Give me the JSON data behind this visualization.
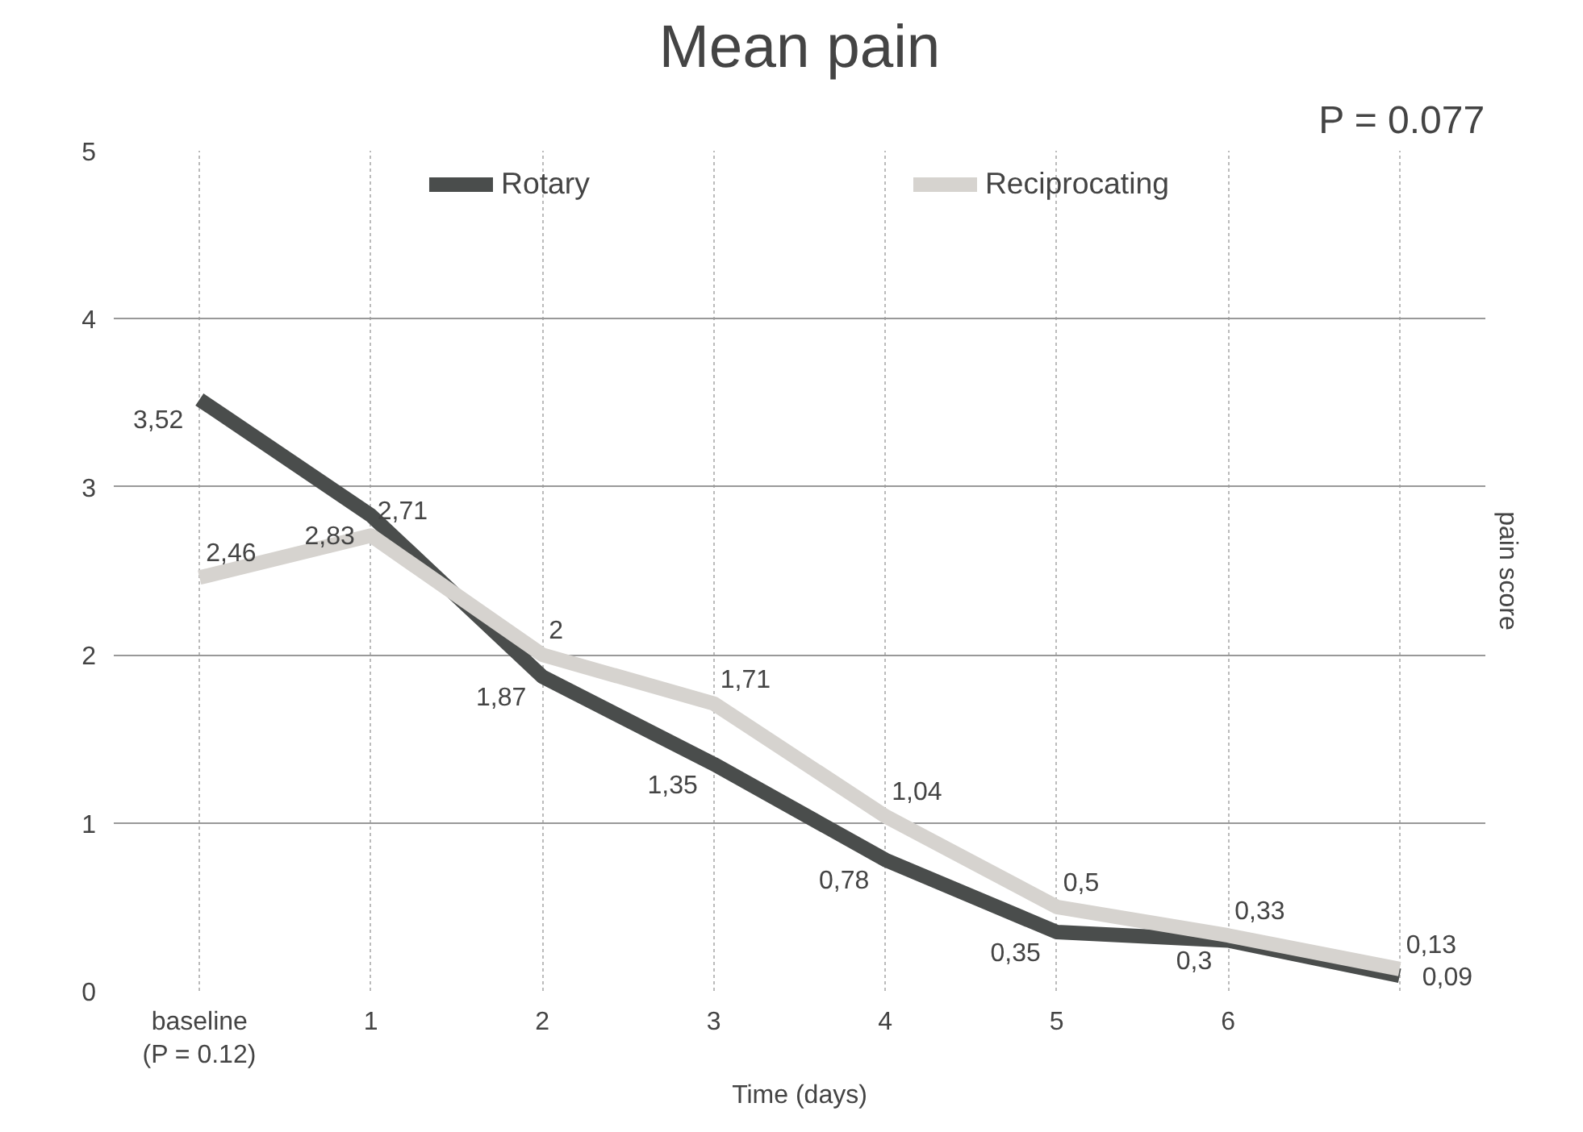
{
  "chart_data": {
    "type": "line",
    "title": "Mean pain",
    "ylabel": "pain score",
    "xlabel": "Time (days)",
    "categories": [
      "baseline\n(P = 0.12)",
      "1",
      "2",
      "3",
      "4",
      "5",
      "6",
      null
    ],
    "series": [
      {
        "name": "Rotary",
        "color": "#4a4d4c",
        "values": [
          3.52,
          2.83,
          1.87,
          1.35,
          0.78,
          0.35,
          0.3,
          0.09
        ],
        "value_labels": [
          "3,52",
          "2,83",
          "1,87",
          "1,35",
          "0,78",
          "0,35",
          "0,3",
          "0,09"
        ]
      },
      {
        "name": "Reciprocating",
        "color": "#d6d3cf",
        "values": [
          2.46,
          2.71,
          2,
          1.71,
          1.04,
          0.5,
          0.33,
          0.13
        ],
        "value_labels": [
          "2,46",
          "2,71",
          "2",
          "1,71",
          "1,04",
          "0,5",
          "0,33",
          "0,13"
        ]
      }
    ],
    "ylim": [
      0,
      5
    ],
    "yticks": [
      0,
      1,
      2,
      3,
      4,
      5
    ],
    "grid": true,
    "legend": "top",
    "marker": "none",
    "line_style": "solid",
    "annotations": [
      "P = 0.077"
    ]
  }
}
